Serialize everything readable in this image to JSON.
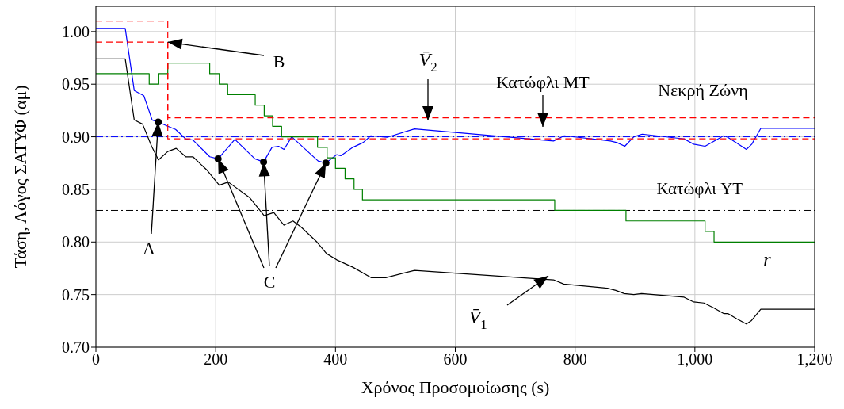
{
  "chart_data": {
    "type": "line",
    "xlabel": "Χρόνος Προσομοίωσης (s)",
    "ylabel": "Τάση, Λόγος ΣΑΤΥΦ (αμ)",
    "xlim": [
      0,
      1200
    ],
    "ylim": [
      0.7,
      1.024
    ],
    "xticks": [
      0,
      200,
      400,
      600,
      800,
      {
        "value": 1000,
        "label": "1,000"
      },
      {
        "value": 1200,
        "label": "1,200"
      }
    ],
    "yticks": [
      {
        "value": 0.7,
        "label": "0.70"
      },
      {
        "value": 0.75,
        "label": "0.75"
      },
      {
        "value": 0.8,
        "label": "0.80"
      },
      {
        "value": 0.85,
        "label": "0.85"
      },
      {
        "value": 0.9,
        "label": "0.90"
      },
      {
        "value": 0.95,
        "label": "0.95"
      },
      {
        "value": 1.0,
        "label": "1.00"
      }
    ],
    "grid": true,
    "line_style": "solid",
    "series": [
      {
        "name": "V̄$_{1}$",
        "color": "#000000",
        "x": [
          0,
          49,
          64,
          78,
          93,
          104.5,
          120,
          134,
          150,
          162,
          186,
          206,
          221,
          257,
          281,
          297,
          314,
          329,
          343,
          369,
          385,
          402,
          429,
          460,
          484,
          532,
          764,
          781,
          854,
          868,
          882,
          898,
          911,
          982,
          998,
          1015,
          1031,
          1048,
          1055,
          1070,
          1086,
          1094,
          1110,
          1200
        ],
        "values": [
          0.974,
          0.974,
          0.916,
          0.912,
          0.891,
          0.878,
          0.886,
          0.889,
          0.881,
          0.881,
          0.868,
          0.854,
          0.857,
          0.842,
          0.825,
          0.828,
          0.816,
          0.82,
          0.814,
          0.8,
          0.789,
          0.783,
          0.776,
          0.766,
          0.766,
          0.773,
          0.764,
          0.76,
          0.756,
          0.754,
          0.751,
          0.75,
          0.751,
          0.7475,
          0.743,
          0.742,
          0.7375,
          0.732,
          0.732,
          0.727,
          0.722,
          0.725,
          0.736,
          0.736
        ]
      },
      {
        "name": "V̄$_{2}$",
        "color": "#0000ff",
        "x": [
          0,
          49,
          64,
          80,
          94,
          104,
          120,
          133,
          150,
          162,
          190,
          204,
          232,
          265.5,
          280,
          294,
          305,
          314,
          327,
          371,
          384,
          402,
          409,
          429,
          446,
          459,
          486,
          532,
          764,
          782,
          859,
          870,
          883,
          898,
          912,
          982,
          998,
          1017,
          1048,
          1055,
          1070,
          1086,
          1095,
          1110,
          1200
        ],
        "values": [
          1.003,
          1.003,
          0.944,
          0.939,
          0.916,
          0.914,
          0.91,
          0.907,
          0.898,
          0.897,
          0.881,
          0.879,
          0.8975,
          0.879,
          0.876,
          0.89,
          0.891,
          0.888,
          0.9,
          0.877,
          0.875,
          0.883,
          0.882,
          0.89,
          0.8945,
          0.901,
          0.8995,
          0.9075,
          0.896,
          0.901,
          0.896,
          0.8945,
          0.891,
          0.9,
          0.9025,
          0.898,
          0.893,
          0.891,
          0.901,
          0.8995,
          0.894,
          0.888,
          0.893,
          0.908,
          0.908
        ]
      },
      {
        "name": "r",
        "type": "step",
        "color": "#008000",
        "x": [
          0,
          89,
          105,
          120,
          190,
          206,
          220,
          266,
          281,
          295,
          310,
          370,
          386,
          400,
          416,
          431,
          445,
          766,
          885,
          1017,
          1032,
          1200
        ],
        "values": [
          0.96,
          0.95,
          0.96,
          0.97,
          0.96,
          0.95,
          0.94,
          0.93,
          0.92,
          0.91,
          0.9,
          0.89,
          0.88,
          0.87,
          0.86,
          0.85,
          0.84,
          0.83,
          0.82,
          0.81,
          0.8,
          0.8
        ]
      },
      {
        "color": "#ff0000",
        "line_style": "dashed",
        "x": [
          0,
          120,
          120,
          1200
        ],
        "values": [
          1.01,
          1.01,
          0.898,
          0.898
        ]
      },
      {
        "color": "#ff0000",
        "line_style": "dashed",
        "x": [
          0,
          120,
          120,
          1200
        ],
        "values": [
          0.99,
          0.99,
          0.918,
          0.918
        ]
      },
      {
        "type": "scatter",
        "color": "#000000",
        "marker": "circle",
        "x": [
          104,
          204,
          280,
          384
        ],
        "values": [
          0.914,
          0.879,
          0.876,
          0.875
        ]
      }
    ],
    "ref_lines": [
      {
        "axis": "y",
        "value": 0.9,
        "color": "#0000ff",
        "line_style": "dashdot"
      },
      {
        "axis": "y",
        "value": 0.83,
        "label": "Κατώφλι YT",
        "color": "#000000",
        "line_style": "dashdot"
      }
    ],
    "annotations": [
      {
        "text": "A",
        "x": 104,
        "y": 0.914
      },
      {
        "text": "B",
        "x": 120,
        "y": 0.99
      },
      {
        "text": "C",
        "x": 280,
        "y": 0.876
      },
      "Κατώφλι MT",
      "Νεκρή Ζώνη"
    ]
  }
}
